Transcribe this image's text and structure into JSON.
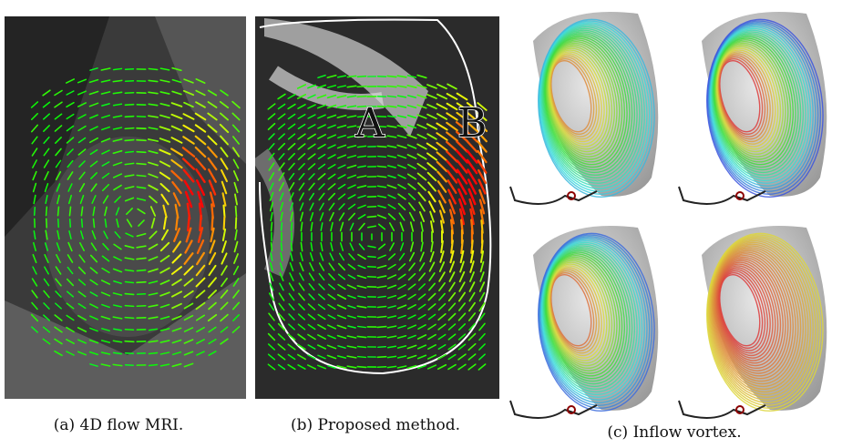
{
  "panels": [
    {
      "caption": "(a) 4D flow MRI."
    },
    {
      "caption": "(b) Proposed method.",
      "labels": [
        "A",
        "B"
      ]
    },
    {
      "caption": "(c) Inflow vortex."
    }
  ]
}
